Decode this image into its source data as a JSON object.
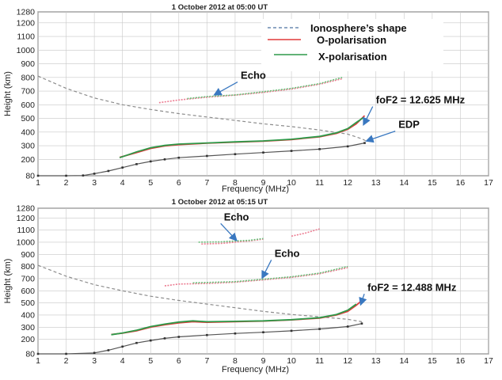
{
  "colors": {
    "ionosphere": "#8c8c8c",
    "o_polarisation": "#e03a3a",
    "x_polarisation": "#2e9a4a",
    "edp": "#555555",
    "echo_o": "#ec7d92",
    "echo_x": "#6abf7a",
    "arrow": "#3a78c0",
    "grid": "#c8c8c8",
    "axis": "#222222"
  },
  "chart_data": [
    {
      "type": "line",
      "title": "1 October 2012 at 05:00 UT",
      "xlabel": "Frequency (MHz)",
      "ylabel": "Height (km)",
      "xlim": [
        1,
        17
      ],
      "ylim": [
        80,
        1280
      ],
      "xticks": [
        "1",
        "2",
        "3",
        "4",
        "5",
        "6",
        "7",
        "8",
        "9",
        "10",
        "11",
        "12",
        "13",
        "14",
        "15",
        "16",
        "17"
      ],
      "yticks": [
        "80",
        "200",
        "300",
        "400",
        "500",
        "600",
        "700",
        "800",
        "900",
        "1000",
        "1100",
        "1200",
        "1280"
      ],
      "grid": true,
      "legend": {
        "position": "top-right",
        "entries": [
          {
            "label": "Ionosphere’s shape",
            "key": "ionosphere",
            "style": "dashed"
          },
          {
            "label": "O-polarisation",
            "key": "o_polarisation",
            "style": "solid"
          },
          {
            "label": "X-polarisation",
            "key": "x_polarisation",
            "style": "solid"
          }
        ]
      },
      "series": [
        {
          "name": "Ionosphere’s shape",
          "key": "ionosphere",
          "style": "dashed",
          "points": [
            [
              1,
              810
            ],
            [
              2,
              720
            ],
            [
              3,
              650
            ],
            [
              4,
              600
            ],
            [
              5,
              565
            ],
            [
              6,
              535
            ],
            [
              7,
              510
            ],
            [
              8,
              485
            ],
            [
              9,
              460
            ],
            [
              10,
              440
            ],
            [
              11,
              415
            ],
            [
              12,
              385
            ],
            [
              12.5,
              350
            ],
            [
              12.7,
              330
            ]
          ]
        },
        {
          "name": "EDP",
          "key": "edp",
          "style": "marked",
          "points": [
            [
              1,
              80
            ],
            [
              2,
              80
            ],
            [
              2.6,
              82
            ],
            [
              3,
              95
            ],
            [
              3.5,
              115
            ],
            [
              4,
              140
            ],
            [
              4.5,
              165
            ],
            [
              5,
              185
            ],
            [
              5.5,
              200
            ],
            [
              6,
              212
            ],
            [
              7,
              225
            ],
            [
              8,
              238
            ],
            [
              9,
              250
            ],
            [
              10,
              262
            ],
            [
              11,
              275
            ],
            [
              12,
              295
            ],
            [
              12.6,
              320
            ]
          ]
        },
        {
          "name": "O-polarisation",
          "key": "o_polarisation",
          "style": "solid",
          "points": [
            [
              3.9,
              215
            ],
            [
              4.5,
              250
            ],
            [
              5,
              280
            ],
            [
              5.5,
              298
            ],
            [
              6,
              308
            ],
            [
              7,
              318
            ],
            [
              8,
              326
            ],
            [
              9,
              333
            ],
            [
              10,
              345
            ],
            [
              11,
              365
            ],
            [
              11.6,
              390
            ],
            [
              12,
              420
            ],
            [
              12.3,
              460
            ],
            [
              12.6,
              520
            ]
          ]
        },
        {
          "name": "X-polarisation",
          "key": "x_polarisation",
          "style": "solid",
          "points": [
            [
              3.9,
              212
            ],
            [
              4.5,
              255
            ],
            [
              5,
              285
            ],
            [
              5.5,
              302
            ],
            [
              6,
              312
            ],
            [
              7,
              320
            ],
            [
              8,
              328
            ],
            [
              9,
              335
            ],
            [
              10,
              347
            ],
            [
              11,
              368
            ],
            [
              11.6,
              395
            ],
            [
              12,
              425
            ],
            [
              12.3,
              470
            ],
            [
              12.55,
              505
            ]
          ]
        },
        {
          "name": "Echo (O)",
          "key": "echo_o",
          "style": "dotted",
          "points": [
            [
              5.3,
              615
            ],
            [
              6,
              635
            ],
            [
              7,
              655
            ],
            [
              8,
              670
            ],
            [
              9,
              690
            ],
            [
              10,
              715
            ],
            [
              11,
              750
            ],
            [
              11.8,
              790
            ]
          ]
        },
        {
          "name": "Echo (X)",
          "key": "echo_x",
          "style": "dotted",
          "points": [
            [
              6.3,
              645
            ],
            [
              7,
              660
            ],
            [
              8,
              672
            ],
            [
              9,
              695
            ],
            [
              10,
              720
            ],
            [
              11,
              755
            ],
            [
              11.8,
              800
            ]
          ]
        }
      ],
      "annotations": [
        {
          "text": "Echo",
          "target": [
            7.2,
            660
          ],
          "label_at": [
            8.2,
            790
          ]
        },
        {
          "text": "foF2 = 12.625 MHz",
          "target": [
            12.5,
            440
          ],
          "label_at": [
            13.0,
            610
          ]
        },
        {
          "text": "EDP",
          "target": [
            12.6,
            322
          ],
          "label_at": [
            13.8,
            430
          ]
        }
      ]
    },
    {
      "type": "line",
      "title": "1 October 2012 at 05:15 UT",
      "xlabel": "Frequency (MHz)",
      "ylabel": "Height (km)",
      "xlim": [
        1,
        17
      ],
      "ylim": [
        80,
        1280
      ],
      "xticks": [
        "1",
        "2",
        "3",
        "4",
        "5",
        "6",
        "7",
        "8",
        "9",
        "10",
        "11",
        "12",
        "13",
        "14",
        "15",
        "16",
        "17"
      ],
      "yticks": [
        "80",
        "200",
        "300",
        "400",
        "500",
        "600",
        "700",
        "800",
        "900",
        "1000",
        "1100",
        "1200",
        "1280"
      ],
      "grid": true,
      "series": [
        {
          "name": "Ionosphere’s shape",
          "key": "ionosphere",
          "style": "dashed",
          "points": [
            [
              1,
              810
            ],
            [
              2,
              720
            ],
            [
              3,
              650
            ],
            [
              4,
              600
            ],
            [
              5,
              555
            ],
            [
              6,
              520
            ],
            [
              7,
              490
            ],
            [
              8,
              460
            ],
            [
              9,
              430
            ],
            [
              10,
              405
            ],
            [
              11,
              385
            ],
            [
              12,
              365
            ],
            [
              12.5,
              345
            ]
          ]
        },
        {
          "name": "EDP",
          "key": "edp",
          "style": "marked",
          "points": [
            [
              1,
              80
            ],
            [
              2,
              80
            ],
            [
              3,
              88
            ],
            [
              3.5,
              110
            ],
            [
              4,
              140
            ],
            [
              4.5,
              170
            ],
            [
              5,
              190
            ],
            [
              5.5,
              208
            ],
            [
              6,
              220
            ],
            [
              7,
              235
            ],
            [
              8,
              248
            ],
            [
              9,
              258
            ],
            [
              10,
              270
            ],
            [
              11,
              285
            ],
            [
              12,
              305
            ],
            [
              12.5,
              330
            ]
          ]
        },
        {
          "name": "O-polarisation",
          "key": "o_polarisation",
          "style": "solid",
          "points": [
            [
              3.6,
              240
            ],
            [
              4,
              250
            ],
            [
              4.5,
              270
            ],
            [
              5,
              300
            ],
            [
              5.5,
              320
            ],
            [
              6,
              335
            ],
            [
              6.5,
              345
            ],
            [
              7,
              340
            ],
            [
              8,
              345
            ],
            [
              9,
              350
            ],
            [
              10,
              360
            ],
            [
              11,
              375
            ],
            [
              11.6,
              400
            ],
            [
              12,
              430
            ],
            [
              12.3,
              480
            ],
            [
              12.45,
              510
            ]
          ]
        },
        {
          "name": "X-polarisation",
          "key": "x_polarisation",
          "style": "solid",
          "points": [
            [
              3.6,
              238
            ],
            [
              4,
              252
            ],
            [
              4.5,
              275
            ],
            [
              5,
              305
            ],
            [
              5.5,
              325
            ],
            [
              6,
              342
            ],
            [
              6.5,
              352
            ],
            [
              7,
              345
            ],
            [
              8,
              348
            ],
            [
              9,
              352
            ],
            [
              10,
              362
            ],
            [
              11,
              378
            ],
            [
              11.6,
              405
            ],
            [
              12,
              440
            ],
            [
              12.3,
              490
            ]
          ]
        },
        {
          "name": "Echo (O) lower",
          "key": "echo_o",
          "style": "dotted",
          "points": [
            [
              5.5,
              640
            ],
            [
              6,
              655
            ],
            [
              7,
              660
            ],
            [
              8,
              670
            ],
            [
              9,
              690
            ],
            [
              10,
              710
            ],
            [
              11,
              740
            ],
            [
              12,
              790
            ]
          ]
        },
        {
          "name": "Echo (X) lower",
          "key": "echo_x",
          "style": "dotted",
          "points": [
            [
              6.5,
              665
            ],
            [
              7,
              668
            ],
            [
              8,
              675
            ],
            [
              9,
              695
            ],
            [
              10,
              715
            ],
            [
              11,
              745
            ],
            [
              12,
              800
            ]
          ]
        },
        {
          "name": "Echo (O) upper",
          "key": "echo_o",
          "style": "dotted",
          "points": [
            [
              6.8,
              985
            ],
            [
              7.5,
              990
            ],
            [
              8,
              1000
            ],
            [
              8.5,
              1010
            ],
            [
              9,
              1025
            ]
          ]
        },
        {
          "name": "Echo (X) upper",
          "key": "echo_x",
          "style": "dotted",
          "points": [
            [
              6.7,
              1000
            ],
            [
              7.5,
              1003
            ],
            [
              8,
              1010
            ],
            [
              8.5,
              1015
            ],
            [
              9,
              1030
            ]
          ]
        },
        {
          "name": "Echo (O) upper right",
          "key": "echo_o",
          "style": "dotted",
          "points": [
            [
              10,
              1050
            ],
            [
              10.5,
              1075
            ],
            [
              11,
              1110
            ]
          ]
        }
      ],
      "annotations": [
        {
          "text": "Echo",
          "target": [
            8.0,
            1000
          ],
          "label_at": [
            7.6,
            1180
          ]
        },
        {
          "text": "Echo",
          "target": [
            8.9,
            690
          ],
          "label_at": [
            9.4,
            880
          ]
        },
        {
          "text": "foF2 = 12.488 MHz",
          "target": [
            12.4,
            470
          ],
          "label_at": [
            12.7,
            600
          ]
        }
      ]
    }
  ]
}
